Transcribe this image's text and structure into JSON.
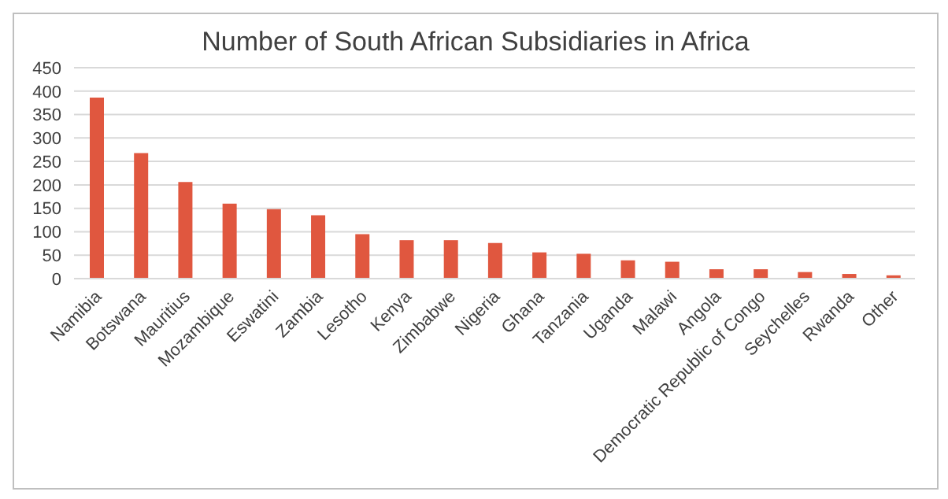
{
  "chart_data": {
    "type": "bar",
    "title": "Number of South African Subsidiaries in Africa",
    "categories": [
      "Namibia",
      "Botswana",
      "Mauritius",
      "Mozambique",
      "Eswatini",
      "Zambia",
      "Lesotho",
      "Kenya",
      "Zimbabwe",
      "Nigeria",
      "Ghana",
      "Tanzania",
      "Uganda",
      "Malawi",
      "Angola",
      "Democratic Republic of Congo",
      "Seychelles",
      "Rwanda",
      "Other"
    ],
    "values": [
      386,
      268,
      206,
      160,
      148,
      135,
      95,
      82,
      82,
      76,
      56,
      53,
      39,
      36,
      20,
      20,
      14,
      10,
      7
    ],
    "color": "#e0573f",
    "ylim": [
      0,
      450
    ],
    "yticks": [
      0,
      50,
      100,
      150,
      200,
      250,
      300,
      350,
      400,
      450
    ],
    "grid": "y"
  }
}
